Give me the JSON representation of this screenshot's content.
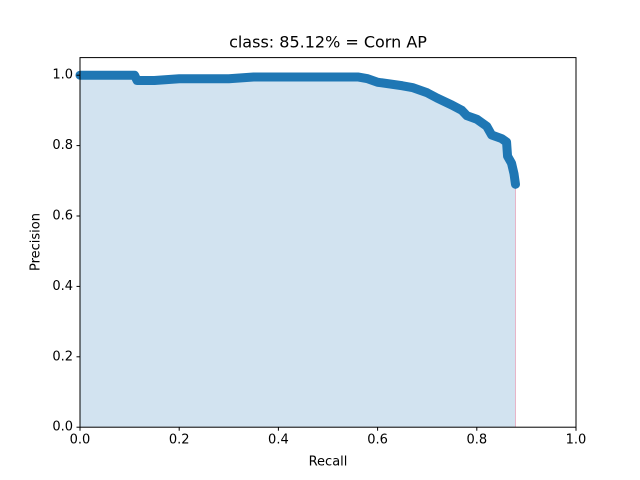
{
  "chart_data": {
    "type": "line",
    "title": "class: 85.12% = Corn AP",
    "x_label": "Recall",
    "y_label": "Precision",
    "x": [
      0,
      0.05,
      0.11,
      0.115,
      0.15,
      0.2,
      0.3,
      0.35,
      0.45,
      0.56,
      0.58,
      0.6,
      0.65,
      0.67,
      0.7,
      0.72,
      0.75,
      0.77,
      0.78,
      0.8,
      0.82,
      0.83,
      0.85,
      0.86,
      0.862,
      0.87,
      0.875,
      0.878
    ],
    "values": [
      1.0,
      1.0,
      1.0,
      0.985,
      0.985,
      0.99,
      0.99,
      0.995,
      0.995,
      0.995,
      0.99,
      0.98,
      0.97,
      0.965,
      0.95,
      0.935,
      0.915,
      0.9,
      0.885,
      0.875,
      0.855,
      0.83,
      0.82,
      0.81,
      0.77,
      0.75,
      0.72,
      0.69
    ],
    "color": "#1f77b4",
    "fill_color": "#d2e3f0",
    "edge_color": "#e8b4c8",
    "xlim": [
      0,
      1
    ],
    "ylim": [
      0,
      1.05
    ],
    "xticks": [
      {
        "value": 0,
        "label": "0.0"
      },
      0.2,
      0.4,
      0.6,
      0.8,
      {
        "value": 1,
        "label": "1.0"
      }
    ],
    "yticks": [
      {
        "value": 0,
        "label": "0.0"
      },
      0.2,
      0.4,
      0.6,
      0.8,
      {
        "value": 1,
        "label": "1.0"
      }
    ]
  }
}
